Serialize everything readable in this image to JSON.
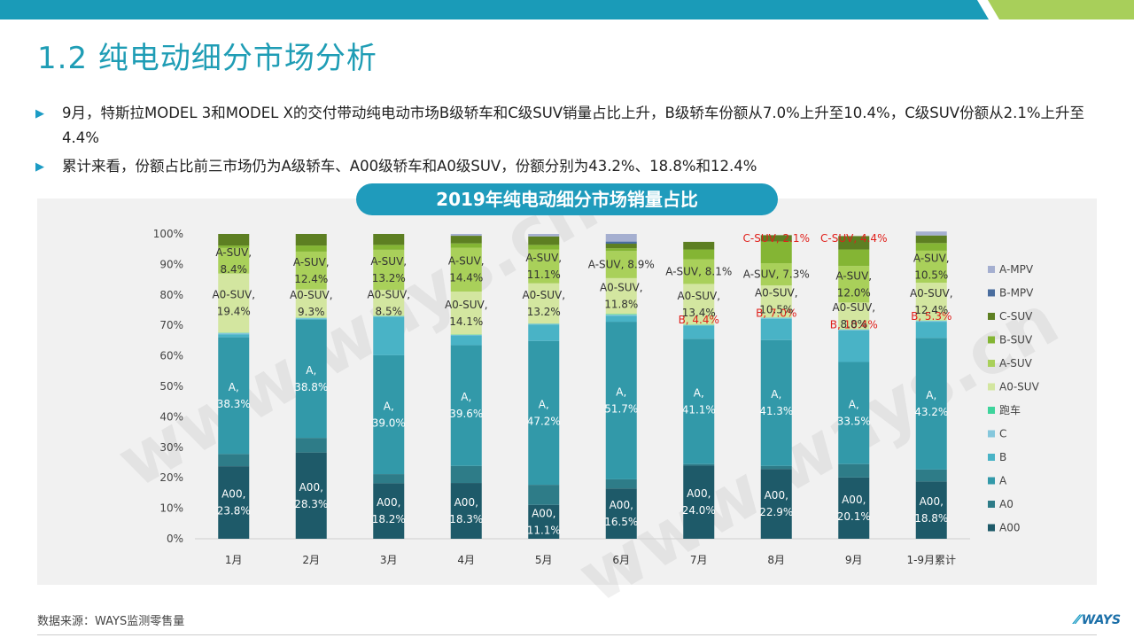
{
  "page": {
    "title": "1.2 纯电动细分市场分析",
    "bullets": [
      "9月，特斯拉MODEL 3和MODEL X的交付带动纯电动市场B级轿车和C级SUV销量占比上升，B级轿车份额从7.0%上升至10.4%，C级SUV份额从2.1%上升至4.4%",
      "累计来看，份额占比前三市场仍为A级轿车、A00级轿车和A0级SUV，份额分别为43.2%、18.8%和12.4%"
    ],
    "source": "数据来源：WAYS监测零售量",
    "logo": "WAYS",
    "watermark": "www.ways.cn"
  },
  "colors": {
    "topbar": "#1a9bb8",
    "topbar_accent": "#a8cf5a",
    "title": "#1f9db5",
    "pill": "#1f9bbc",
    "highlight_label": "#e0201b"
  },
  "chart_data": {
    "type": "bar",
    "stacked": true,
    "title": "2019年纯电动细分市场销量占比",
    "categories": [
      "1月",
      "2月",
      "3月",
      "4月",
      "5月",
      "6月",
      "7月",
      "8月",
      "9月",
      "1-9月累计"
    ],
    "ylim": [
      0,
      100
    ],
    "ytick_labels": [
      "0%",
      "10%",
      "20%",
      "30%",
      "40%",
      "50%",
      "60%",
      "70%",
      "80%",
      "90%",
      "100%"
    ],
    "legend_position": "right",
    "series": [
      {
        "name": "A00",
        "color": "#1e5a69",
        "values": [
          23.8,
          28.3,
          18.2,
          18.3,
          11.1,
          16.5,
          24.0,
          22.9,
          20.1,
          18.8
        ]
      },
      {
        "name": "A0",
        "color": "#2e7c88",
        "values": [
          4.0,
          4.8,
          3.0,
          5.6,
          6.6,
          3.0,
          0.5,
          1.0,
          4.4,
          3.9
        ]
      },
      {
        "name": "A",
        "color": "#3299a9",
        "values": [
          38.3,
          38.8,
          39.0,
          39.6,
          47.2,
          51.7,
          41.1,
          41.3,
          33.5,
          43.2
        ]
      },
      {
        "name": "B",
        "color": "#49b3c6",
        "values": [
          1.0,
          0.3,
          12.6,
          3.2,
          5.4,
          2.0,
          4.4,
          7.0,
          10.4,
          5.3
        ]
      },
      {
        "name": "C",
        "color": "#85c7dc",
        "values": [
          0.4,
          0.2,
          0.2,
          0.2,
          0.2,
          0.3,
          0.1,
          0.3,
          0.2,
          0.3
        ]
      },
      {
        "name": "跑车",
        "color": "#3ed49c",
        "values": [
          0.1,
          0.1,
          0.1,
          0.1,
          0.1,
          0.2,
          0.1,
          0.1,
          0.1,
          0.1
        ]
      },
      {
        "name": "A0-SUV",
        "color": "#d3e6a0",
        "values": [
          19.4,
          9.3,
          8.5,
          14.1,
          13.2,
          11.8,
          13.4,
          10.5,
          8.8,
          12.4
        ]
      },
      {
        "name": "A-SUV",
        "color": "#a9d05a",
        "values": [
          8.4,
          12.4,
          13.2,
          14.4,
          11.1,
          8.9,
          8.1,
          7.3,
          12.0,
          10.5
        ]
      },
      {
        "name": "B-SUV",
        "color": "#84b534",
        "values": [
          0.8,
          2.0,
          1.6,
          1.4,
          1.5,
          0.9,
          3.2,
          7.1,
          5.4,
          2.5
        ]
      },
      {
        "name": "C-SUV",
        "color": "#5d7f22",
        "values": [
          3.8,
          3.8,
          3.6,
          2.5,
          2.8,
          1.5,
          2.5,
          2.1,
          4.4,
          2.5
        ]
      },
      {
        "name": "B-MPV",
        "color": "#4a6d9e",
        "values": [
          0.0,
          0.0,
          0.0,
          0.0,
          0.0,
          0.7,
          0.0,
          0.0,
          0.0,
          0.0
        ]
      },
      {
        "name": "A-MPV",
        "color": "#a5afd0",
        "values": [
          0.0,
          0.0,
          0.0,
          0.6,
          0.8,
          2.5,
          0.0,
          0.0,
          0.0,
          1.3
        ]
      }
    ],
    "data_labels": [
      [
        "A00,\n23.8%",
        "A,\n38.3%",
        "A0-SUV,\n19.4%",
        "A-SUV,\n8.4%"
      ],
      [
        "A00,\n28.3%",
        "A,\n38.8%",
        "A0-SUV,\n9.3%",
        "A-SUV,\n12.4%"
      ],
      [
        "A00,\n18.2%",
        "A,\n39.0%",
        "A0-SUV,\n8.5%",
        "A-SUV,\n13.2%"
      ],
      [
        "A00,\n18.3%",
        "A,\n39.6%",
        "A0-SUV,\n14.1%",
        "A-SUV,\n14.4%"
      ],
      [
        "A00,\n11.1%",
        "A,\n47.2%",
        "A0-SUV,\n13.2%",
        "A-SUV,\n11.1%"
      ],
      [
        "A00,\n16.5%",
        "A,\n51.7%",
        "A0-SUV,\n11.8%",
        "A-SUV, 8.9%"
      ],
      [
        "A00,\n24.0%",
        "A,\n41.1%",
        "B, 4.4%",
        "A0-SUV,\n13.4%",
        "A-SUV, 8.1%"
      ],
      [
        "A00,\n22.9%",
        "A,\n41.3%",
        "B, 7.0%",
        "A0-SUV,\n10.5%",
        "A-SUV, 7.3%",
        "C-SUV, 2.1%"
      ],
      [
        "A00,\n20.1%",
        "A,\n33.5%",
        "B, 10.4%",
        "A0-SUV,\n8.8%",
        "A-SUV,\n12.0%",
        "C-SUV, 4.4%"
      ],
      [
        "A00,\n18.8%",
        "A,\n43.2%",
        "B, 5.3%",
        "A0-SUV,\n12.4%",
        "A-SUV,\n10.5%"
      ]
    ]
  }
}
